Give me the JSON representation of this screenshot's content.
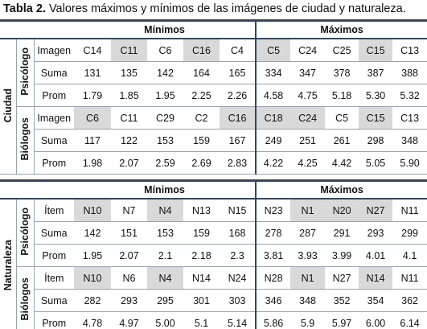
{
  "title": {
    "label": "Tabla 2.",
    "text": "Valores máximos y mínimos de las imágenes de ciudad y naturaleza."
  },
  "blocks": [
    {
      "name": "Ciudad",
      "min_header": "Mínimos",
      "max_header": "Máximos",
      "groups": [
        {
          "name": "Psicólogo",
          "rows": [
            {
              "label": "Imagen",
              "min": [
                "C14",
                "C11",
                "C6",
                "C16",
                "C4"
              ],
              "max": [
                "C5",
                "C24",
                "C25",
                "C15",
                "C13"
              ]
            },
            {
              "label": "Suma",
              "min": [
                "131",
                "135",
                "142",
                "164",
                "165"
              ],
              "max": [
                "334",
                "347",
                "378",
                "387",
                "388"
              ]
            },
            {
              "label": "Prom",
              "min": [
                "1.79",
                "1.85",
                "1.95",
                "2.25",
                "2.26"
              ],
              "max": [
                "4.58",
                "4.75",
                "5.18",
                "5.30",
                "5.32"
              ]
            }
          ]
        },
        {
          "name": "Biólogos",
          "rows": [
            {
              "label": "Imagen",
              "min": [
                "C6",
                "C11",
                "C29",
                "C2",
                "C16"
              ],
              "max": [
                "C18",
                "C24",
                "C5",
                "C15",
                "C13"
              ]
            },
            {
              "label": "Suma",
              "min": [
                "117",
                "122",
                "153",
                "159",
                "167"
              ],
              "max": [
                "249",
                "251",
                "261",
                "298",
                "348"
              ]
            },
            {
              "label": "Prom",
              "min": [
                "1.98",
                "2.07",
                "2.59",
                "2.69",
                "2.83"
              ],
              "max": [
                "4.22",
                "4.25",
                "4.42",
                "5.05",
                "5.90"
              ]
            }
          ]
        }
      ]
    },
    {
      "name": "Naturaleza",
      "min_header": "Mínimos",
      "max_header": "Máximos",
      "groups": [
        {
          "name": "Psicólogo",
          "rows": [
            {
              "label": "Ítem",
              "min": [
                "N10",
                "N7",
                "N4",
                "N13",
                "N15"
              ],
              "max": [
                "N23",
                "N1",
                "N20",
                "N27",
                "N11"
              ]
            },
            {
              "label": "Suma",
              "min": [
                "142",
                "151",
                "153",
                "159",
                "168"
              ],
              "max": [
                "278",
                "287",
                "291",
                "293",
                "299"
              ]
            },
            {
              "label": "Prom",
              "min": [
                "1.95",
                "2.07",
                "2.1",
                "2.18",
                "2.3"
              ],
              "max": [
                "3.81",
                "3.93",
                "3.99",
                "4.01",
                "4.1"
              ]
            }
          ]
        },
        {
          "name": "Biólogos",
          "rows": [
            {
              "label": "Ítem",
              "min": [
                "N10",
                "N6",
                "N4",
                "N14",
                "N24"
              ],
              "max": [
                "N28",
                "N1",
                "N27",
                "N14",
                "N11"
              ]
            },
            {
              "label": "Suma",
              "min": [
                "282",
                "293",
                "295",
                "301",
                "303"
              ],
              "max": [
                "346",
                "348",
                "352",
                "354",
                "362"
              ]
            },
            {
              "label": "Prom",
              "min": [
                "4.78",
                "4.97",
                "5.00",
                "5.1",
                "5.14"
              ],
              "max": [
                "5.86",
                "5.9",
                "5.97",
                "6.00",
                "6.14"
              ]
            }
          ]
        }
      ]
    }
  ]
}
